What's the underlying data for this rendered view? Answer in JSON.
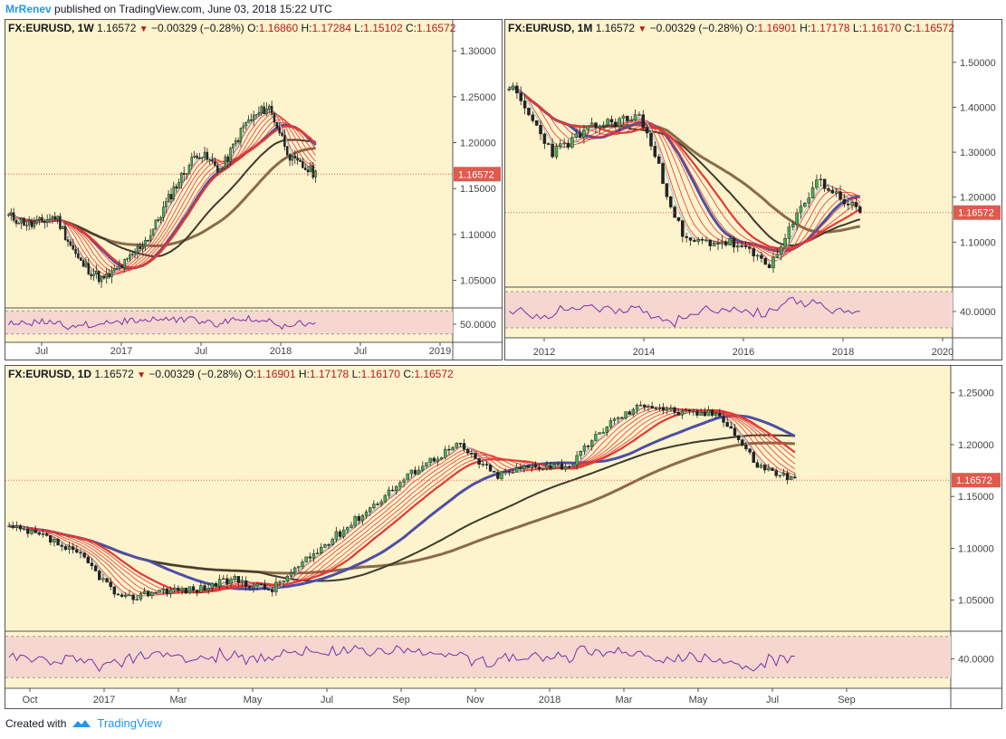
{
  "header": {
    "user": "MrRenev",
    "text": " published on TradingView.com, June 03, 2018 15:22 UTC"
  },
  "footer": {
    "created_with": "Created with",
    "brand": "TradingView"
  },
  "colors": {
    "bg": "#fdf3cc",
    "up": "#2e7d32",
    "down": "#b71c1c",
    "rsi_fill": "#f6d7d0",
    "rsi_line": "#7b2fa8",
    "price_tag": "#e05a4d",
    "ma_blue": "#4b4fa6",
    "ma_brown": "#8a6a4a",
    "ma_dark": "#3d3b30",
    "ma_red": "#e53935",
    "ma_lightblue": "#9ccfe0"
  },
  "panels": {
    "weekly": {
      "symbol": "FX:EURUSD, 1W",
      "last": "1.16572",
      "change": "−0.00329 (−0.28%)",
      "O": "1.16860",
      "H": "1.17284",
      "L": "1.15102",
      "C": "1.16572",
      "price_ticks": [
        "1.30000",
        "1.25000",
        "1.20000",
        "1.15000",
        "1.10000",
        "1.05000"
      ],
      "rsi_ticks": [
        "50.0000"
      ],
      "time_ticks": [
        "Jul",
        "2017",
        "Jul",
        "2018",
        "Jul",
        "2019"
      ],
      "price_tag": "1.16572"
    },
    "monthly": {
      "symbol": "FX:EURUSD, 1M",
      "last": "1.16572",
      "change": "−0.00329 (−0.28%)",
      "O": "1.16901",
      "H": "1.17178",
      "L": "1.16170",
      "C": "1.16572",
      "price_ticks": [
        "1.50000",
        "1.40000",
        "1.30000",
        "1.20000",
        "1.10000"
      ],
      "rsi_ticks": [
        "40.0000"
      ],
      "time_ticks": [
        "2012",
        "2014",
        "2016",
        "2018",
        "2020"
      ],
      "price_tag": "1.16572"
    },
    "daily": {
      "symbol": "FX:EURUSD, 1D",
      "last": "1.16572",
      "change": "−0.00329 (−0.28%)",
      "O": "1.16901",
      "H": "1.17178",
      "L": "1.16170",
      "C": "1.16572",
      "price_ticks": [
        "1.25000",
        "1.20000",
        "1.15000",
        "1.10000",
        "1.05000"
      ],
      "rsi_ticks": [
        "40.0000"
      ],
      "time_ticks": [
        "Oct",
        "2017",
        "Mar",
        "May",
        "Jul",
        "Sep",
        "Nov",
        "2018",
        "Mar",
        "May",
        "Jul",
        "Sep"
      ],
      "price_tag": "1.16572"
    }
  },
  "chart_data": [
    {
      "type": "line",
      "title": "FX:EURUSD, 1W",
      "ylim": [
        1.02,
        1.31
      ],
      "x": [
        "2016-05",
        "2016-07",
        "2016-09",
        "2016-11",
        "2017-01",
        "2017-03",
        "2017-05",
        "2017-07",
        "2017-09",
        "2017-11",
        "2018-01",
        "2018-03",
        "2018-05",
        "2018-06"
      ],
      "series": [
        {
          "values": [
            1.12,
            1.11,
            1.12,
            1.07,
            1.05,
            1.07,
            1.1,
            1.15,
            1.19,
            1.17,
            1.22,
            1.24,
            1.18,
            1.166
          ]
        }
      ]
    },
    {
      "type": "line",
      "title": "FX:EURUSD, 1M",
      "ylim": [
        1.0,
        1.55
      ],
      "x": [
        "2011",
        "2012",
        "2013",
        "2014",
        "2015",
        "2016",
        "2017",
        "2018",
        "2018-06"
      ],
      "series": [
        {
          "values": [
            1.45,
            1.3,
            1.36,
            1.38,
            1.1,
            1.1,
            1.05,
            1.24,
            1.166
          ]
        }
      ]
    },
    {
      "type": "line",
      "title": "FX:EURUSD, 1D",
      "ylim": [
        1.02,
        1.255
      ],
      "x": [
        "2016-09",
        "2016-10",
        "2016-11",
        "2016-12",
        "2017-01",
        "2017-02",
        "2017-03",
        "2017-04",
        "2017-05",
        "2017-06",
        "2017-07",
        "2017-08",
        "2017-09",
        "2017-10",
        "2017-11",
        "2017-12",
        "2018-01",
        "2018-02",
        "2018-03",
        "2018-04",
        "2018-05",
        "2018-06"
      ],
      "series": [
        {
          "values": [
            1.12,
            1.11,
            1.09,
            1.05,
            1.06,
            1.06,
            1.07,
            1.06,
            1.09,
            1.12,
            1.15,
            1.18,
            1.2,
            1.17,
            1.18,
            1.18,
            1.22,
            1.24,
            1.23,
            1.23,
            1.18,
            1.166
          ]
        }
      ]
    }
  ]
}
